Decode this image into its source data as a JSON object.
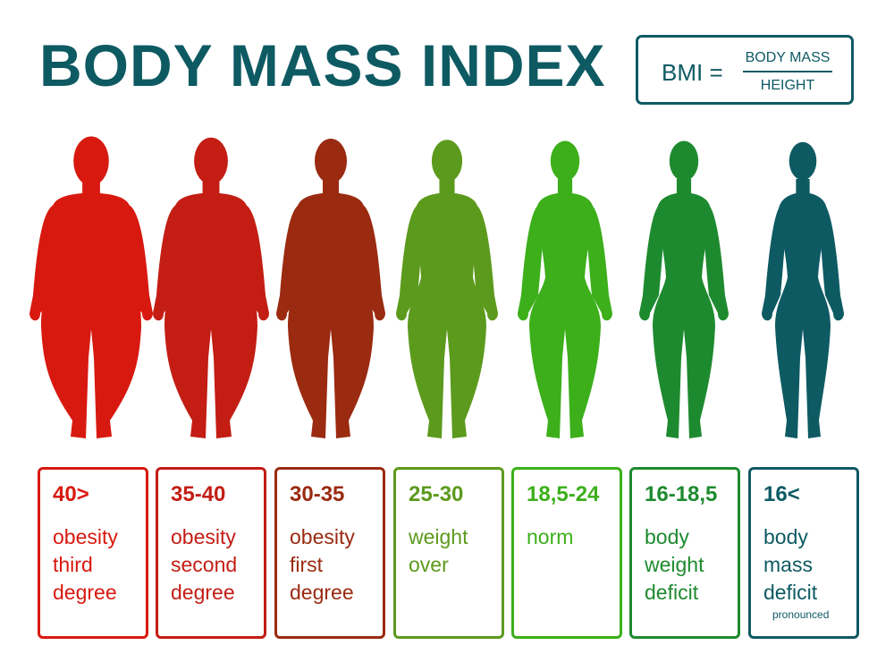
{
  "header": {
    "title": "BODY MASS INDEX"
  },
  "formula": {
    "lhs": "BMI =",
    "numerator": "BODY MASS",
    "denominator": "HEIGHT"
  },
  "colors": {
    "title": "#0e5a63"
  },
  "categories": [
    {
      "range": "40>",
      "description": "obesity\nthird\ndegree",
      "color": "#d81910",
      "figure": "female-silhouette-obese-icon"
    },
    {
      "range": "35-40",
      "description": "obesity\nsecond\ndegree",
      "color": "#c31d14",
      "figure": "female-silhouette-obese-icon"
    },
    {
      "range": "30-35",
      "description": "obesity\nfirst\ndegree",
      "color": "#9a2a10",
      "figure": "female-silhouette-obese-icon"
    },
    {
      "range": "25-30",
      "description": "weight\nover",
      "color": "#5c9a1d",
      "figure": "female-silhouette-overweight-icon"
    },
    {
      "range": "18,5-24",
      "description": "norm",
      "color": "#3caf1b",
      "figure": "female-silhouette-normal-icon"
    },
    {
      "range": "16-18,5",
      "description": "body\nweight\ndeficit",
      "color": "#1e8a2f",
      "figure": "female-silhouette-thin-icon"
    },
    {
      "range": "16<",
      "description": "body\nmass\ndeficit",
      "note": "pronounced",
      "color": "#0e5a63",
      "figure": "female-silhouette-thin-icon"
    }
  ]
}
